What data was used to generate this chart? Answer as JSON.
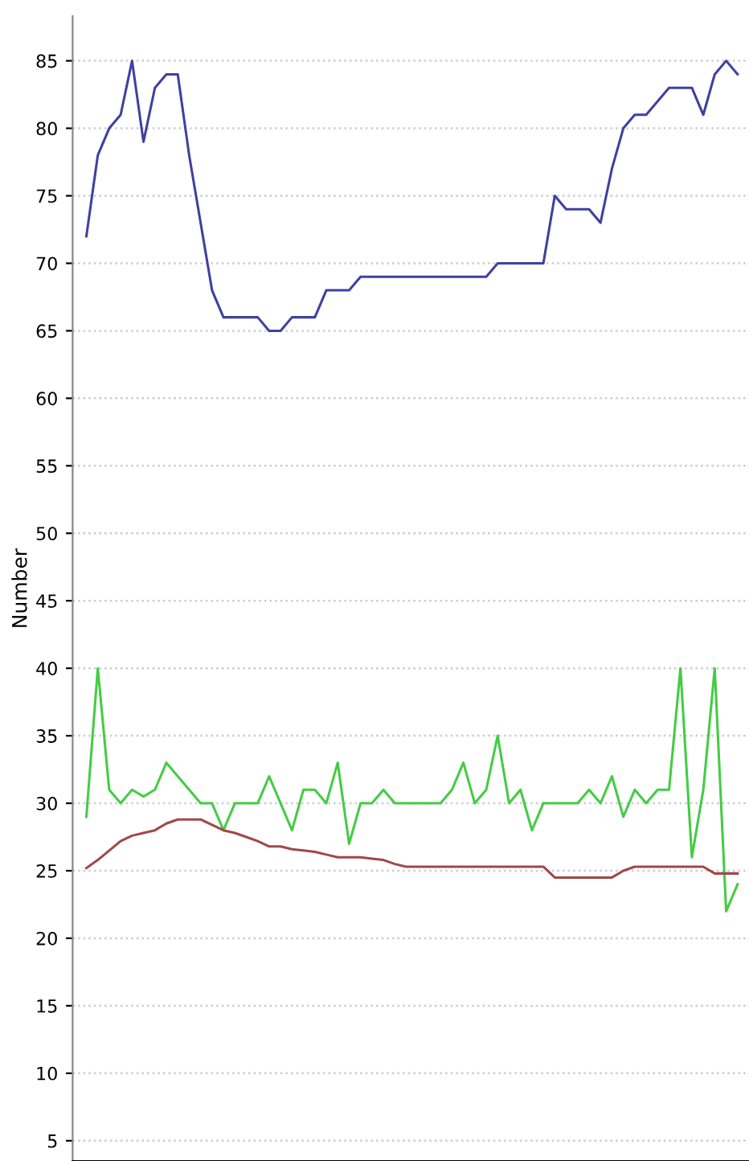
{
  "chart_data": {
    "type": "line",
    "ylabel": "Number",
    "categories": [
      null,
      null,
      null,
      null,
      null,
      null,
      null,
      null,
      null,
      null,
      null,
      null,
      null,
      null,
      null,
      null,
      null,
      null,
      null,
      null,
      null,
      null,
      null,
      null,
      null,
      null,
      null,
      null,
      null,
      null,
      null,
      null,
      null,
      null,
      null,
      null,
      null,
      null,
      null,
      null,
      null,
      null,
      null,
      null,
      null,
      null,
      null,
      null,
      null,
      null,
      null,
      null,
      null,
      null,
      null,
      null,
      null,
      null
    ],
    "series": [
      {
        "color": "#4040a0",
        "values": [
          72,
          78,
          80,
          81,
          85,
          79,
          83,
          84,
          84,
          78,
          73,
          68,
          66,
          66,
          66,
          66,
          65,
          65,
          66,
          66,
          66,
          68,
          68,
          68,
          69,
          69,
          69,
          69,
          69,
          69,
          69,
          69,
          69,
          69,
          69,
          69,
          70,
          70,
          70,
          70,
          70,
          75,
          74,
          74,
          74,
          73,
          77,
          80,
          81,
          81,
          82,
          83,
          83,
          83,
          81,
          84,
          85,
          84
        ]
      },
      {
        "color": "#44cc44",
        "values": [
          29,
          40,
          31,
          30,
          31,
          30.5,
          31,
          33,
          32,
          31,
          30,
          30,
          28,
          30,
          30,
          30,
          32,
          30,
          28,
          31,
          31,
          30,
          33,
          27,
          30,
          30,
          31,
          30,
          30,
          30,
          30,
          30,
          31,
          33,
          30,
          31,
          35,
          30,
          31,
          28,
          30,
          30,
          30,
          30,
          31,
          30,
          32,
          29,
          31,
          30,
          31,
          31,
          40,
          26,
          31,
          40,
          22,
          24
        ]
      },
      {
        "color": "#a04848",
        "values": [
          25.2,
          25.8,
          26.5,
          27.2,
          27.6,
          27.8,
          28,
          28.5,
          28.8,
          28.8,
          28.8,
          28.4,
          28,
          27.8,
          27.5,
          27.2,
          26.8,
          26.8,
          26.6,
          26.5,
          26.4,
          26.2,
          26,
          26,
          26,
          25.9,
          25.8,
          25.5,
          25.3,
          25.3,
          25.3,
          25.3,
          25.3,
          25.3,
          25.3,
          25.3,
          25.3,
          25.3,
          25.3,
          25.3,
          25.3,
          24.5,
          24.5,
          24.5,
          24.5,
          24.5,
          24.5,
          25,
          25.3,
          25.3,
          25.3,
          25.3,
          25.3,
          25.3,
          25.3,
          24.8,
          24.8,
          24.8
        ]
      }
    ],
    "ylim": [
      3.5,
      88.3
    ],
    "yticks": [
      5,
      10,
      15,
      20,
      25,
      30,
      35,
      40,
      45,
      50,
      55,
      60,
      65,
      70,
      75,
      80,
      85
    ],
    "grid": "y",
    "tick_labels": "y",
    "legend": false
  }
}
